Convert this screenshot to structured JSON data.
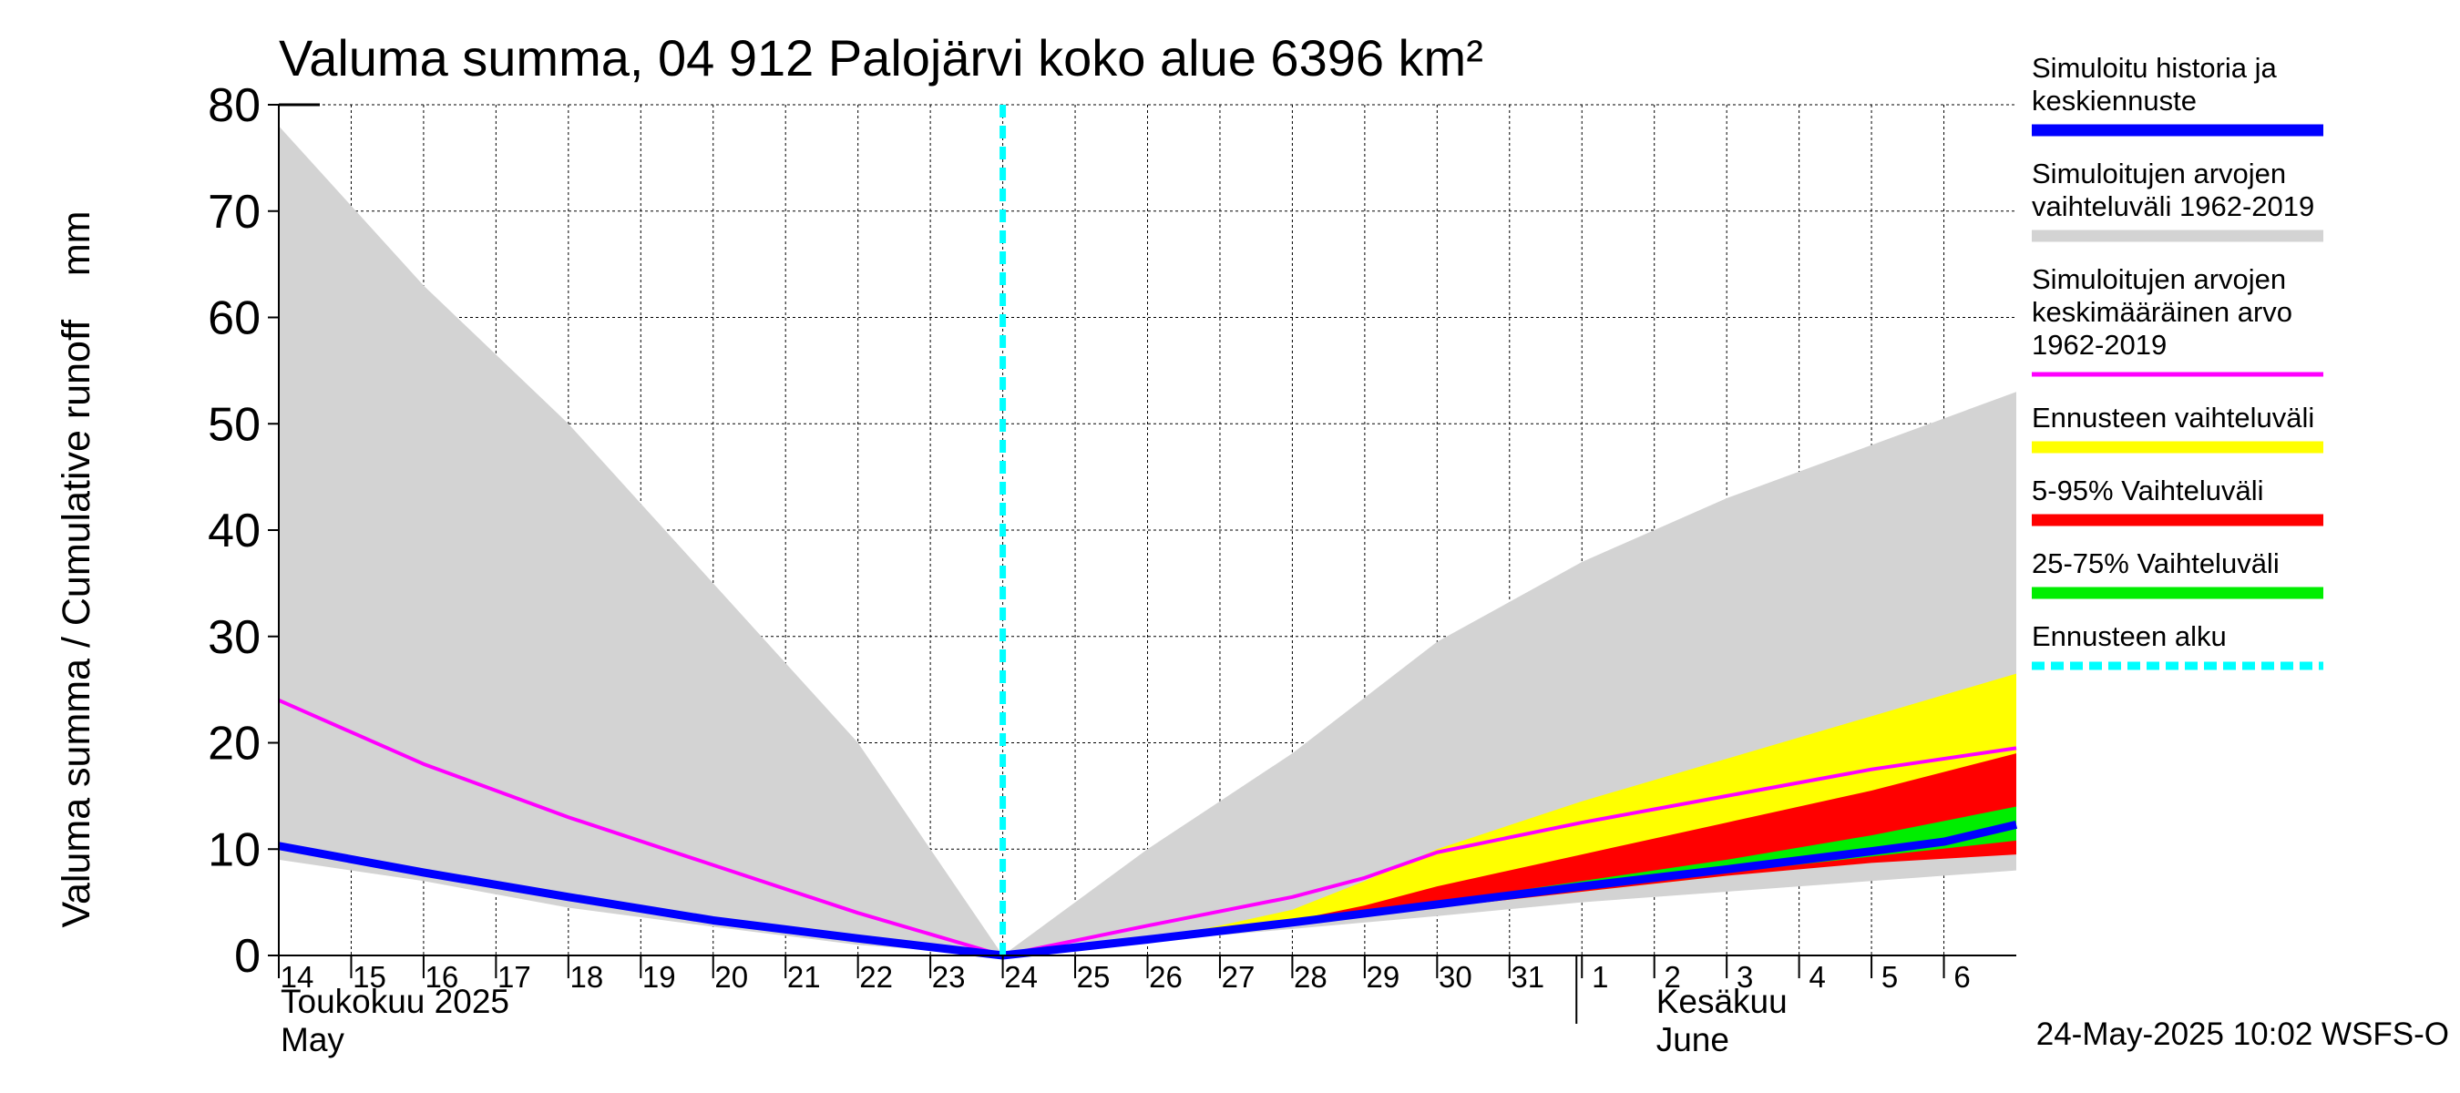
{
  "chart_data": {
    "type": "area",
    "title": "Valuma summa, 04 912 Palojärvi koko alue 6396 km²",
    "ylabel": "Valuma summa / Cumulative runoff    mm",
    "ylim": [
      0,
      80
    ],
    "yticks": [
      0,
      10,
      20,
      30,
      40,
      50,
      60,
      70,
      80
    ],
    "xlim": [
      0,
      24
    ],
    "xticks": [
      {
        "x": 0,
        "label": "14"
      },
      {
        "x": 1,
        "label": "15"
      },
      {
        "x": 2,
        "label": "16"
      },
      {
        "x": 3,
        "label": "17"
      },
      {
        "x": 4,
        "label": "18"
      },
      {
        "x": 5,
        "label": "19"
      },
      {
        "x": 6,
        "label": "20"
      },
      {
        "x": 7,
        "label": "21"
      },
      {
        "x": 8,
        "label": "22"
      },
      {
        "x": 9,
        "label": "23"
      },
      {
        "x": 10,
        "label": "24"
      },
      {
        "x": 11,
        "label": "25"
      },
      {
        "x": 12,
        "label": "26"
      },
      {
        "x": 13,
        "label": "27"
      },
      {
        "x": 14,
        "label": "28"
      },
      {
        "x": 15,
        "label": "29"
      },
      {
        "x": 16,
        "label": "30"
      },
      {
        "x": 17,
        "label": "31"
      },
      {
        "x": 18,
        "label": "1"
      },
      {
        "x": 19,
        "label": "2"
      },
      {
        "x": 20,
        "label": "3"
      },
      {
        "x": 21,
        "label": "4"
      },
      {
        "x": 22,
        "label": "5"
      },
      {
        "x": 23,
        "label": "6"
      }
    ],
    "month_divider_x": 18,
    "month_labels": [
      {
        "x": 0,
        "fi": "Toukokuu  2025",
        "en": "May"
      },
      {
        "x": 19,
        "fi": "Kesäkuu",
        "en": "June"
      }
    ],
    "forecast_start_x": 10,
    "series": [
      {
        "name": "hist_range",
        "kind": "band",
        "color": "#d3d3d3",
        "upper": [
          [
            0,
            78
          ],
          [
            2,
            63
          ],
          [
            4,
            50
          ],
          [
            6,
            35
          ],
          [
            8,
            20
          ],
          [
            10,
            0
          ],
          [
            12,
            10
          ],
          [
            14,
            19
          ],
          [
            16,
            29.5
          ],
          [
            18,
            37
          ],
          [
            20,
            43
          ],
          [
            22,
            48
          ],
          [
            24,
            53
          ]
        ],
        "lower": [
          [
            0,
            9
          ],
          [
            2,
            7
          ],
          [
            4,
            4.5
          ],
          [
            6,
            2.7
          ],
          [
            8,
            1
          ],
          [
            10,
            0
          ],
          [
            12,
            1.3
          ],
          [
            14,
            2.5
          ],
          [
            16,
            3.7
          ],
          [
            18,
            5
          ],
          [
            20,
            6
          ],
          [
            22,
            7
          ],
          [
            24,
            8
          ]
        ]
      },
      {
        "name": "forecast_range",
        "kind": "band",
        "color": "#ffff00",
        "upper": [
          [
            10,
            0
          ],
          [
            12,
            1.5
          ],
          [
            13,
            2.8
          ],
          [
            14,
            4.3
          ],
          [
            15,
            7
          ],
          [
            16,
            10
          ],
          [
            18,
            14.5
          ],
          [
            20,
            18.5
          ],
          [
            22,
            22.5
          ],
          [
            24,
            26.5
          ]
        ],
        "lower": [
          [
            10,
            0
          ],
          [
            12,
            1.5
          ],
          [
            14,
            3.2
          ],
          [
            16,
            4.5
          ],
          [
            18,
            6
          ],
          [
            20,
            7.5
          ],
          [
            22,
            9
          ],
          [
            24,
            10
          ]
        ]
      },
      {
        "name": "p5_95",
        "kind": "band",
        "color": "#ff0000",
        "upper": [
          [
            10,
            0
          ],
          [
            12,
            1.5
          ],
          [
            14,
            3.3
          ],
          [
            15,
            4.7
          ],
          [
            16,
            6.5
          ],
          [
            18,
            9.5
          ],
          [
            20,
            12.5
          ],
          [
            22,
            15.5
          ],
          [
            24,
            19
          ]
        ],
        "lower": [
          [
            10,
            0
          ],
          [
            12,
            1.5
          ],
          [
            14,
            3.2
          ],
          [
            16,
            4.5
          ],
          [
            18,
            6
          ],
          [
            20,
            7.5
          ],
          [
            22,
            8.7
          ],
          [
            24,
            9.5
          ]
        ]
      },
      {
        "name": "p25_75",
        "kind": "band",
        "color": "#00ee00",
        "upper": [
          [
            10,
            0
          ],
          [
            12,
            1.5
          ],
          [
            14,
            3.3
          ],
          [
            16,
            5
          ],
          [
            18,
            7
          ],
          [
            20,
            9
          ],
          [
            22,
            11.3
          ],
          [
            24,
            14
          ]
        ],
        "lower": [
          [
            10,
            0
          ],
          [
            12,
            1.5
          ],
          [
            14,
            3.2
          ],
          [
            16,
            4.8
          ],
          [
            18,
            6.2
          ],
          [
            20,
            7.8
          ],
          [
            22,
            9.3
          ],
          [
            24,
            10.8
          ]
        ]
      },
      {
        "name": "mean",
        "kind": "line",
        "color": "#ff00ff",
        "width": 4,
        "points": [
          [
            0,
            24
          ],
          [
            2,
            18
          ],
          [
            4,
            13
          ],
          [
            6,
            8.5
          ],
          [
            8,
            4
          ],
          [
            10,
            0
          ],
          [
            12,
            2.8
          ],
          [
            14,
            5.5
          ],
          [
            15,
            7.3
          ],
          [
            16,
            9.7
          ],
          [
            18,
            12.5
          ],
          [
            20,
            15
          ],
          [
            22,
            17.5
          ],
          [
            24,
            19.5
          ]
        ]
      },
      {
        "name": "history_forecast",
        "kind": "line",
        "color": "#0000ff",
        "width": 9,
        "points": [
          [
            0,
            10.3
          ],
          [
            2,
            7.8
          ],
          [
            4,
            5.5
          ],
          [
            6,
            3.3
          ],
          [
            8,
            1.6
          ],
          [
            10,
            0
          ],
          [
            12,
            1.5
          ],
          [
            14,
            3.1
          ],
          [
            16,
            4.8
          ],
          [
            18,
            6.5
          ],
          [
            20,
            8.1
          ],
          [
            22,
            9.8
          ],
          [
            23,
            10.7
          ],
          [
            24,
            12.3
          ]
        ]
      }
    ]
  },
  "legend": {
    "items": [
      {
        "label": "Simuloitu historia ja|keskiennuste",
        "color": "#0000ff",
        "style": "solid"
      },
      {
        "label": "Simuloitujen arvojen|vaihteluväli 1962-2019",
        "color": "#d3d3d3",
        "style": "solid"
      },
      {
        "label": "Simuloitujen arvojen|keskimääräinen arvo|   1962-2019",
        "color": "#ff00ff",
        "style": "thin"
      },
      {
        "label": "Ennusteen vaihteluväli",
        "color": "#ffff00",
        "style": "solid"
      },
      {
        "label": "5-95% Vaihteluväli",
        "color": "#ff0000",
        "style": "solid"
      },
      {
        "label": "25-75% Vaihteluväli",
        "color": "#00ee00",
        "style": "solid"
      },
      {
        "label": "Ennusteen alku",
        "color": "#00ffff",
        "style": "dashed"
      }
    ]
  },
  "footer": {
    "timestamp": "24-May-2025 10:02 WSFS-O"
  }
}
